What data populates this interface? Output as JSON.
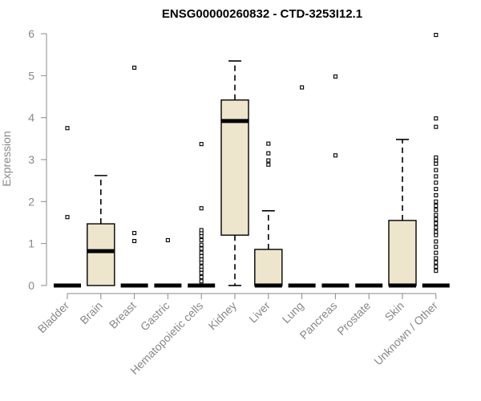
{
  "chart_data": {
    "type": "box",
    "title": "ENSG00000260832 - CTD-3253I12.1",
    "xlabel": "",
    "ylabel": "Expression",
    "ylim": [
      0,
      6
    ],
    "yticks": [
      0,
      1,
      2,
      3,
      4,
      5,
      6
    ],
    "grid": false,
    "legend": "none",
    "box_fill": "#ede6cc",
    "categories": [
      "Bladder",
      "Brain",
      "Breast",
      "Gastric",
      "Hematopoietic cells",
      "Kidney",
      "Liver",
      "Lung",
      "Pancreas",
      "Prostate",
      "Skin",
      "Unknown / Other"
    ],
    "boxes": [
      {
        "q1": 0,
        "median": 0,
        "q3": 0,
        "whisker_low": 0,
        "whisker_high": 0,
        "outliers": [
          1.63,
          3.75
        ]
      },
      {
        "q1": 0,
        "median": 0.82,
        "q3": 1.47,
        "whisker_low": 0,
        "whisker_high": 2.62,
        "outliers": []
      },
      {
        "q1": 0,
        "median": 0,
        "q3": 0,
        "whisker_low": 0,
        "whisker_high": 0,
        "outliers": [
          1.06,
          1.25,
          5.19
        ]
      },
      {
        "q1": 0,
        "median": 0,
        "q3": 0,
        "whisker_low": 0,
        "whisker_high": 0,
        "outliers": [
          1.08
        ]
      },
      {
        "q1": 0,
        "median": 0,
        "q3": 0,
        "whisker_low": 0,
        "whisker_high": 0,
        "outliers": [
          0.1,
          0.2,
          0.3,
          0.38,
          0.45,
          0.55,
          0.62,
          0.7,
          0.78,
          0.88,
          0.97,
          1.08,
          1.18,
          1.25,
          1.32,
          1.84,
          3.37
        ]
      },
      {
        "q1": 1.2,
        "median": 3.92,
        "q3": 4.42,
        "whisker_low": 0,
        "whisker_high": 5.35,
        "outliers": []
      },
      {
        "q1": 0,
        "median": 0,
        "q3": 0.86,
        "whisker_low": 0,
        "whisker_high": 1.78,
        "outliers": [
          2.88,
          2.98,
          3.15,
          3.38
        ]
      },
      {
        "q1": 0,
        "median": 0,
        "q3": 0,
        "whisker_low": 0,
        "whisker_high": 0,
        "outliers": [
          4.72
        ]
      },
      {
        "q1": 0,
        "median": 0,
        "q3": 0,
        "whisker_low": 0,
        "whisker_high": 0,
        "outliers": [
          3.1,
          4.98
        ]
      },
      {
        "q1": 0,
        "median": 0,
        "q3": 0,
        "whisker_low": 0,
        "whisker_high": 0,
        "outliers": []
      },
      {
        "q1": 0,
        "median": 0,
        "q3": 1.55,
        "whisker_low": 0,
        "whisker_high": 3.48,
        "outliers": []
      },
      {
        "q1": 0,
        "median": 0,
        "q3": 0,
        "whisker_low": 0,
        "whisker_high": 0,
        "outliers": [
          0.35,
          0.45,
          0.55,
          0.65,
          0.78,
          0.92,
          1.05,
          1.2,
          1.28,
          1.38,
          1.48,
          1.58,
          1.68,
          1.8,
          1.9,
          2.0,
          2.15,
          2.3,
          2.45,
          2.6,
          2.75,
          2.9,
          2.98,
          3.05,
          3.78,
          3.98,
          5.97
        ]
      }
    ]
  }
}
